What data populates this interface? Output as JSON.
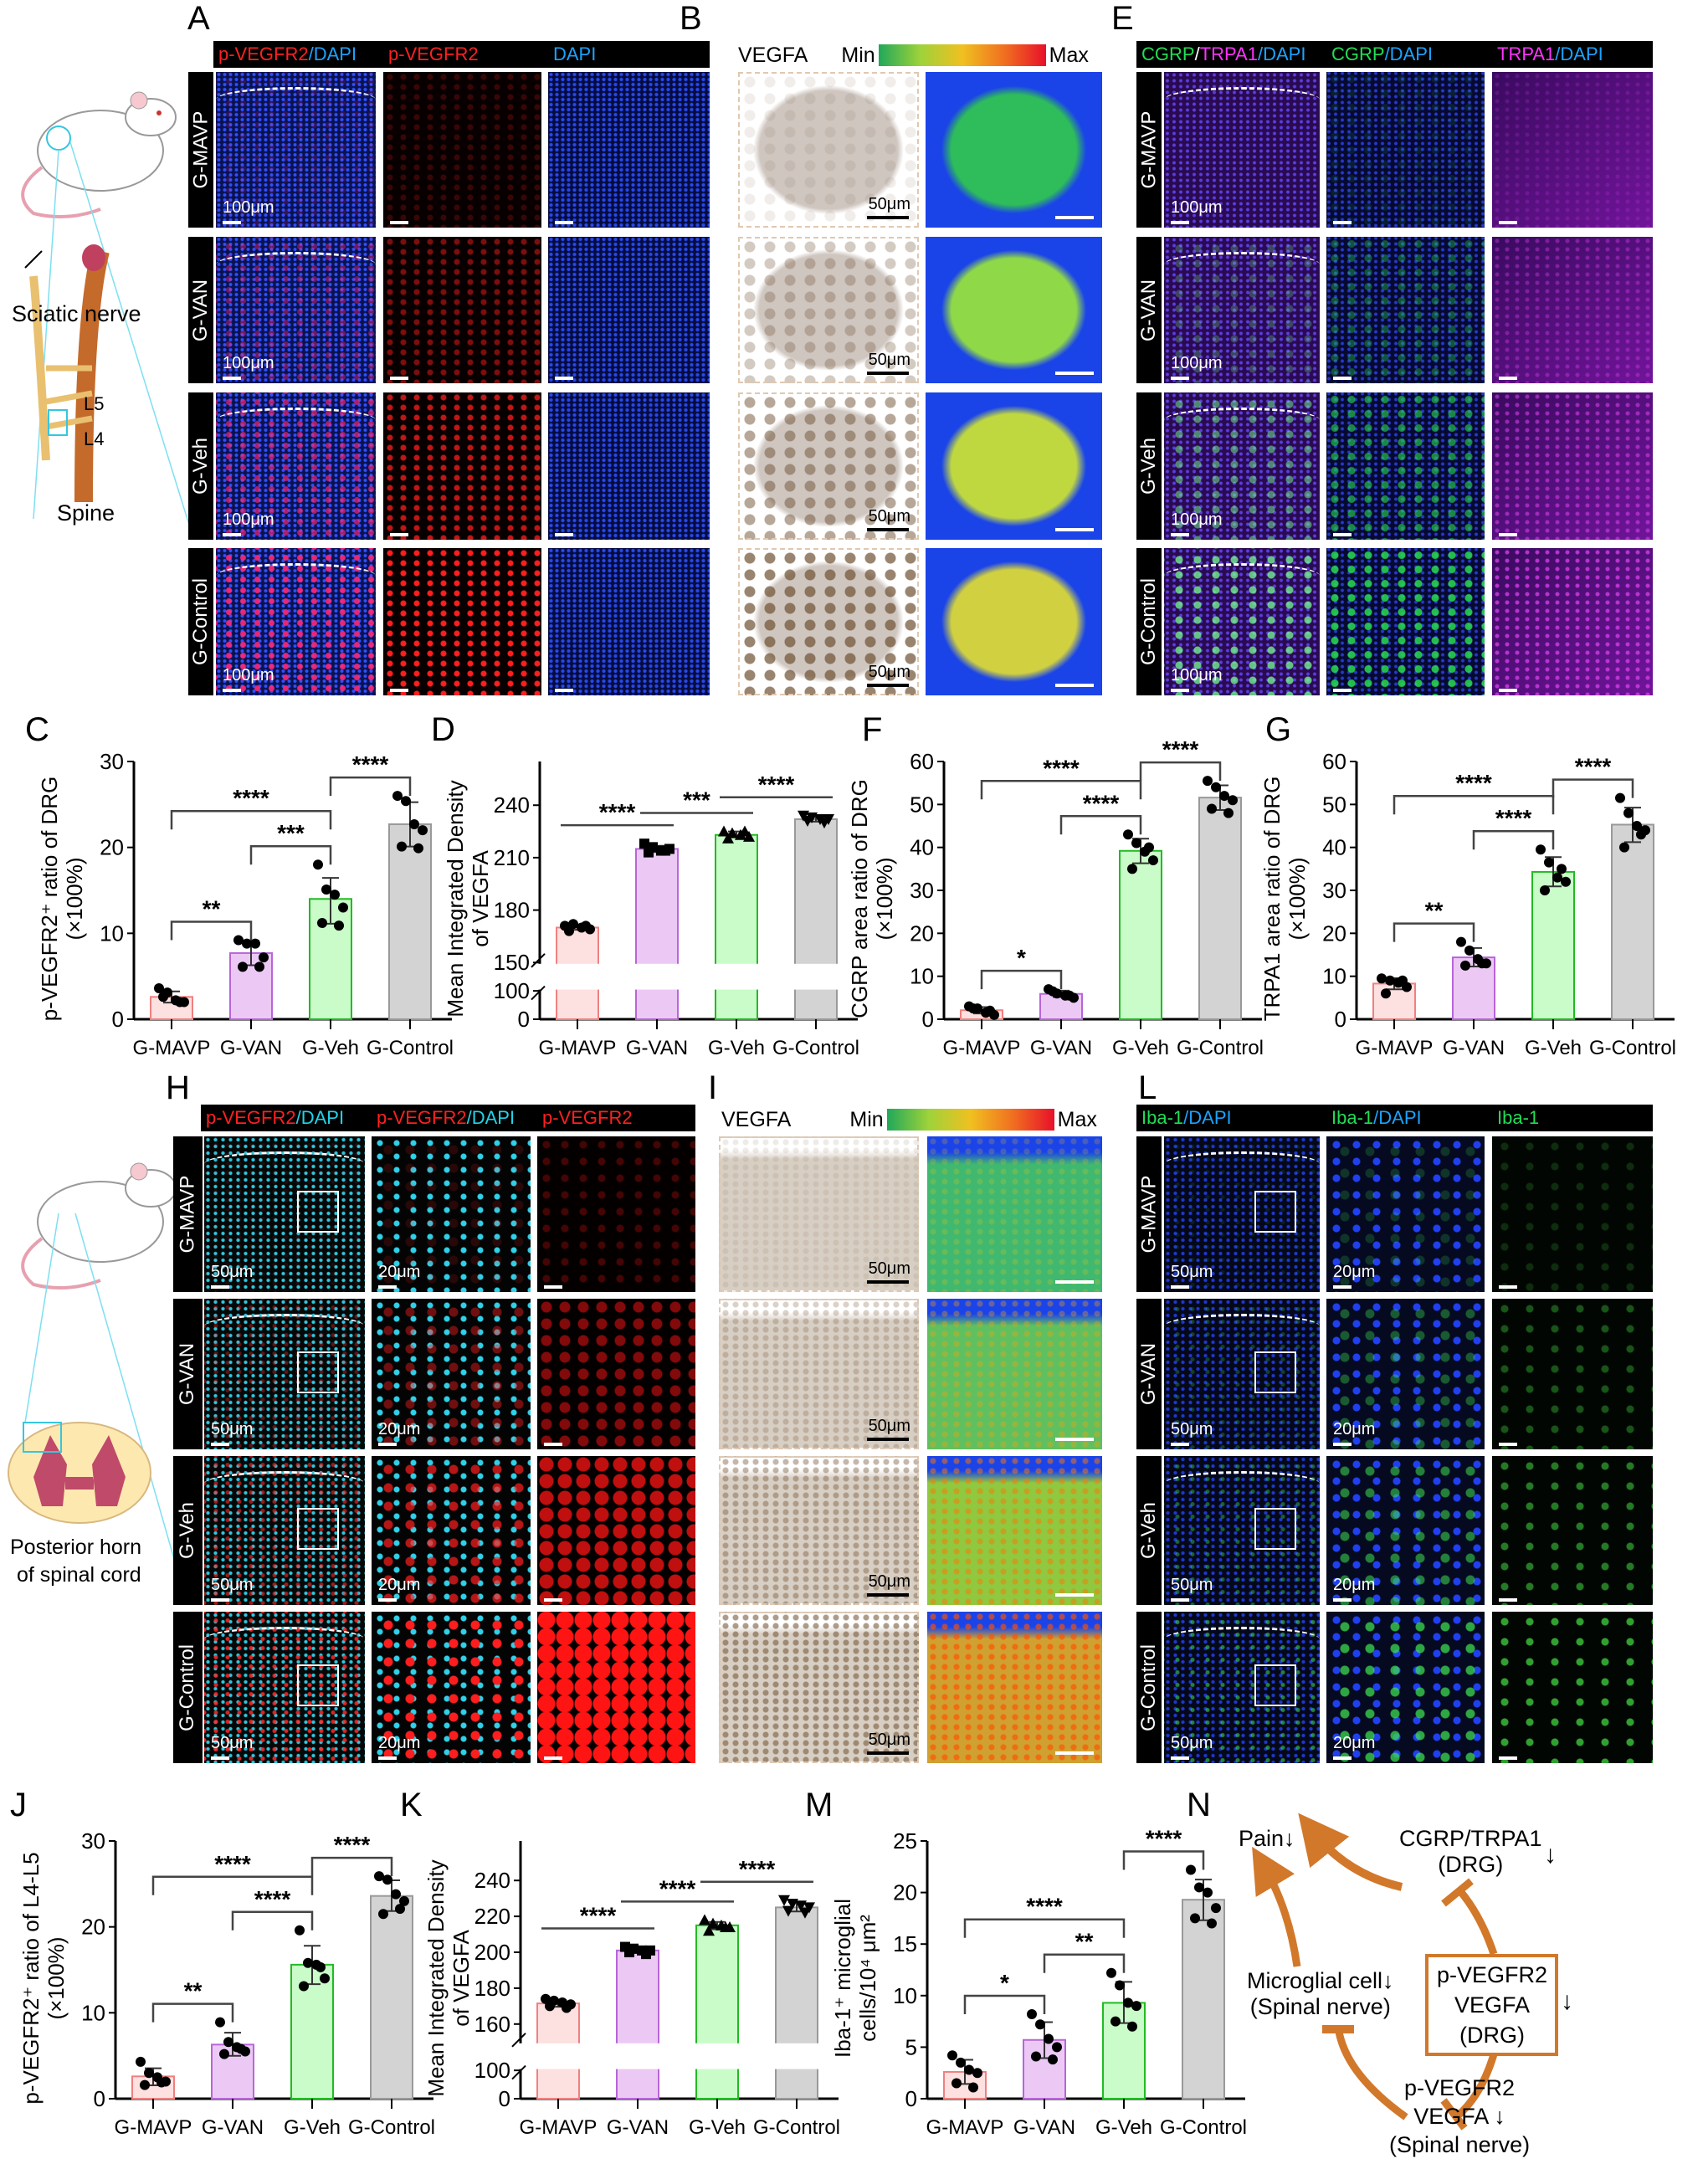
{
  "panel_letters": {
    "A": "A",
    "B": "B",
    "C": "C",
    "D": "D",
    "E": "E",
    "F": "F",
    "G": "G",
    "H": "H",
    "I": "I",
    "J": "J",
    "K": "K",
    "L": "L",
    "M": "M",
    "N": "N"
  },
  "groups": [
    "G-MAVP",
    "G-VAN",
    "G-Veh",
    "G-Control"
  ],
  "illustration_top": {
    "sciatic": "Sciatic nerve",
    "l5": "L5",
    "l4": "L4",
    "spine": "Spine"
  },
  "illustration_bottom": {
    "horn_line1": "Posterior horn",
    "horn_line2": "of spinal cord"
  },
  "panel_A": {
    "headers": [
      [
        {
          "t": "p-VEGFR2",
          "c": "#ff2020"
        },
        {
          "t": "/DAPI",
          "c": "#1aa3ff"
        }
      ],
      [
        {
          "t": "p-VEGFR2",
          "c": "#ff2020"
        }
      ],
      [
        {
          "t": "DAPI",
          "c": "#1aa3ff"
        }
      ]
    ],
    "scale": "100μm"
  },
  "panel_B": {
    "title": "VEGFA",
    "min": "Min",
    "max": "Max",
    "scale": "50μm"
  },
  "panel_E": {
    "headers": [
      [
        {
          "t": "CGRP",
          "c": "#22dd55"
        },
        {
          "t": "/",
          "c": "#fff"
        },
        {
          "t": "TRPA1",
          "c": "#ff33ff"
        },
        {
          "t": "/DAPI",
          "c": "#1aa3ff"
        }
      ],
      [
        {
          "t": "CGRP",
          "c": "#22dd55"
        },
        {
          "t": "/DAPI",
          "c": "#1aa3ff"
        }
      ],
      [
        {
          "t": "TRPA1",
          "c": "#ff33ff"
        },
        {
          "t": "/DAPI",
          "c": "#1aa3ff"
        }
      ]
    ],
    "scale": "100μm"
  },
  "panel_H": {
    "headers": [
      [
        {
          "t": "p-VEGFR2",
          "c": "#ff2020"
        },
        {
          "t": "/DAPI",
          "c": "#22d3e8"
        }
      ],
      [
        {
          "t": "p-VEGFR2",
          "c": "#ff2020"
        },
        {
          "t": "/DAPI",
          "c": "#22d3e8"
        }
      ],
      [
        {
          "t": "p-VEGFR2",
          "c": "#ff2020"
        }
      ]
    ],
    "scale_low": "50μm",
    "scale_high": "20μm"
  },
  "panel_I": {
    "title": "VEGFA",
    "min": "Min",
    "max": "Max",
    "scale": "50μm"
  },
  "panel_L": {
    "headers": [
      [
        {
          "t": "Iba-1",
          "c": "#22dd55"
        },
        {
          "t": "/DAPI",
          "c": "#1aa3ff"
        }
      ],
      [
        {
          "t": "Iba-1",
          "c": "#22dd55"
        },
        {
          "t": "/DAPI",
          "c": "#1aa3ff"
        }
      ],
      [
        {
          "t": "Iba-1",
          "c": "#22dd55"
        }
      ]
    ],
    "scale_low": "50μm",
    "scale_high": "20μm"
  },
  "colors": {
    "fills": [
      "#fde0e0",
      "#ecc9f5",
      "#c9fcc9",
      "#d3d3d3"
    ],
    "strokes": [
      "#f08080",
      "#b865d8",
      "#22bb22",
      "#999999"
    ],
    "pathway": "#d2782a"
  },
  "chart_data": [
    {
      "id": "C",
      "type": "bar",
      "ylabel": "p-VEGFR2⁺ ratio of DRG",
      "ylabel2": "(×100%)",
      "ylim": [
        0,
        30
      ],
      "ticks": [
        0,
        10,
        20,
        30
      ],
      "bracket_style": "tick",
      "markers": [
        "circle",
        "circle",
        "circle",
        "circle"
      ],
      "categories": [
        "G-MAVP",
        "G-VAN",
        "G-Veh",
        "G-Control"
      ],
      "values": [
        2.6,
        7.7,
        14.0,
        22.7
      ],
      "points": [
        [
          3.6,
          3.1,
          2.2,
          2.0,
          2.6,
          2.0
        ],
        [
          9.2,
          8.8,
          8.8,
          7.2,
          6.1,
          6.1
        ],
        [
          18.0,
          15.1,
          14.5,
          13.0,
          11.2,
          10.9
        ],
        [
          26.0,
          25.4,
          22.7,
          22.0,
          20.1,
          19.9
        ]
      ],
      "significance": [
        {
          "from": 0,
          "to": 1,
          "label": "**"
        },
        {
          "from": 1,
          "to": 2,
          "label": "***"
        },
        {
          "from": 0,
          "to": 2,
          "label": "****"
        },
        {
          "from": 2,
          "to": 3,
          "label": "****"
        }
      ]
    },
    {
      "id": "D",
      "type": "bar",
      "ylabel": "Mean Integrated Density",
      "ylabel2": "of VEGFA",
      "ylim": [
        0,
        265
      ],
      "axis_break": [
        100,
        150
      ],
      "ticks": [
        0,
        100,
        150,
        180,
        210,
        240
      ],
      "bracket_style": "flat",
      "markers": [
        "circle",
        "square",
        "triangle-up",
        "triangle-down"
      ],
      "categories": [
        "G-MAVP",
        "G-VAN",
        "G-Veh",
        "G-Control"
      ],
      "values": [
        170,
        215,
        223,
        232
      ],
      "points": [
        [
          171,
          172,
          170,
          169,
          168,
          171
        ],
        [
          218,
          216,
          214,
          215,
          213,
          214
        ],
        [
          225,
          224,
          223,
          222,
          221,
          225
        ],
        [
          234,
          233,
          232,
          232,
          231,
          230
        ]
      ],
      "significance": [
        {
          "from": 0,
          "to": 1,
          "label": "****"
        },
        {
          "from": 1,
          "to": 2,
          "label": "***"
        },
        {
          "from": 2,
          "to": 3,
          "label": "****"
        }
      ]
    },
    {
      "id": "F",
      "type": "bar",
      "ylabel": "CGRP area ratio of DRG",
      "ylabel2": "(×100%)",
      "ylim": [
        0,
        60
      ],
      "ticks": [
        0,
        10,
        20,
        30,
        40,
        50,
        60
      ],
      "bracket_style": "tick",
      "markers": [
        "circle",
        "circle",
        "circle",
        "circle"
      ],
      "categories": [
        "G-MAVP",
        "G-VAN",
        "G-Veh",
        "G-Control"
      ],
      "values": [
        2.1,
        5.9,
        39.2,
        51.6
      ],
      "points": [
        [
          3.0,
          2.5,
          1.5,
          1.0,
          2.5,
          2.0
        ],
        [
          7.0,
          6.0,
          5.5,
          5.0,
          6.5,
          5.5
        ],
        [
          43,
          41,
          39,
          37,
          35,
          40
        ],
        [
          55.5,
          54,
          52,
          51,
          49,
          48
        ]
      ],
      "significance": [
        {
          "from": 0,
          "to": 1,
          "label": "*"
        },
        {
          "from": 1,
          "to": 2,
          "label": "****"
        },
        {
          "from": 0,
          "to": 2,
          "label": "****"
        },
        {
          "from": 2,
          "to": 3,
          "label": "****"
        }
      ]
    },
    {
      "id": "G",
      "type": "bar",
      "ylabel": "TRPA1 area ratio of DRG",
      "ylabel2": "(×100%)",
      "ylim": [
        0,
        60
      ],
      "ticks": [
        0,
        10,
        20,
        30,
        40,
        50,
        60
      ],
      "bracket_style": "tick",
      "markers": [
        "circle",
        "circle",
        "circle",
        "circle"
      ],
      "categories": [
        "G-MAVP",
        "G-VAN",
        "G-Veh",
        "G-Control"
      ],
      "values": [
        8.3,
        14.4,
        34.3,
        45.3
      ],
      "points": [
        [
          9.5,
          9.0,
          8.5,
          7.5,
          6.0,
          9.0
        ],
        [
          18,
          16,
          14,
          13,
          12.5,
          13
        ],
        [
          39.5,
          36.5,
          33,
          32,
          30,
          35
        ],
        [
          51.5,
          48,
          45,
          44,
          40,
          43
        ]
      ],
      "significance": [
        {
          "from": 0,
          "to": 1,
          "label": "**"
        },
        {
          "from": 1,
          "to": 2,
          "label": "****"
        },
        {
          "from": 0,
          "to": 2,
          "label": "****"
        },
        {
          "from": 2,
          "to": 3,
          "label": "****"
        }
      ]
    },
    {
      "id": "J",
      "type": "bar",
      "ylabel": "p-VEGFR2⁺ ratio of L4-L5",
      "ylabel2": "(×100%)",
      "ylim": [
        0,
        30
      ],
      "ticks": [
        0,
        10,
        20,
        30
      ],
      "bracket_style": "tick",
      "markers": [
        "circle",
        "circle",
        "circle",
        "circle"
      ],
      "categories": [
        "G-MAVP",
        "G-VAN",
        "G-Veh",
        "G-Control"
      ],
      "values": [
        2.6,
        6.3,
        15.6,
        23.6
      ],
      "points": [
        [
          4.3,
          3.0,
          2.5,
          2.0,
          1.6,
          1.9
        ],
        [
          8.9,
          6.6,
          6.0,
          5.5,
          5.2,
          5.8
        ],
        [
          19.6,
          15.8,
          15.6,
          14.0,
          13.1,
          15.3
        ],
        [
          25.9,
          25.5,
          23.8,
          23.0,
          21.5,
          22.1
        ]
      ],
      "significance": [
        {
          "from": 0,
          "to": 1,
          "label": "**"
        },
        {
          "from": 1,
          "to": 2,
          "label": "****"
        },
        {
          "from": 0,
          "to": 2,
          "label": "****"
        },
        {
          "from": 2,
          "to": 3,
          "label": "****"
        }
      ]
    },
    {
      "id": "K",
      "type": "bar",
      "ylabel": "Mean Integrated Density",
      "ylabel2": "of VEGFA",
      "ylim": [
        0,
        262
      ],
      "axis_break": [
        100,
        150
      ],
      "ticks": [
        0,
        100,
        160,
        180,
        200,
        220,
        240
      ],
      "bracket_style": "flat",
      "markers": [
        "circle",
        "square",
        "triangle-up",
        "triangle-down"
      ],
      "categories": [
        "G-MAVP",
        "G-VAN",
        "G-Veh",
        "G-Control"
      ],
      "values": [
        171.5,
        201,
        215,
        225
      ],
      "points": [
        [
          174,
          173,
          172,
          171,
          170,
          169
        ],
        [
          203,
          202,
          201,
          201,
          200,
          199
        ],
        [
          218,
          216,
          215,
          214,
          212,
          214
        ],
        [
          229,
          227,
          226,
          225,
          223,
          222
        ]
      ],
      "significance": [
        {
          "from": 0,
          "to": 1,
          "label": "****"
        },
        {
          "from": 1,
          "to": 2,
          "label": "****"
        },
        {
          "from": 2,
          "to": 3,
          "label": "****"
        }
      ]
    },
    {
      "id": "M",
      "type": "bar",
      "ylabel": "Iba-1⁺ microglial",
      "ylabel2": "cells/10⁴ μm²",
      "ylim": [
        0,
        25
      ],
      "ticks": [
        0,
        5,
        10,
        15,
        20,
        25
      ],
      "bracket_style": "tick",
      "markers": [
        "circle",
        "circle",
        "circle",
        "circle"
      ],
      "categories": [
        "G-MAVP",
        "G-VAN",
        "G-Veh",
        "G-Control"
      ],
      "values": [
        2.6,
        5.7,
        9.3,
        19.3
      ],
      "points": [
        [
          4.2,
          3.5,
          2.8,
          2.5,
          1.5,
          1.1
        ],
        [
          8.2,
          7.2,
          5.8,
          5.0,
          4.1,
          3.8
        ],
        [
          12.2,
          11.0,
          9.3,
          9.0,
          7.5,
          7.0
        ],
        [
          22.2,
          20.5,
          20.0,
          18.5,
          17.5,
          17.0
        ]
      ],
      "significance": [
        {
          "from": 0,
          "to": 1,
          "label": "*"
        },
        {
          "from": 1,
          "to": 2,
          "label": "**"
        },
        {
          "from": 0,
          "to": 2,
          "label": "****"
        },
        {
          "from": 2,
          "to": 3,
          "label": "****"
        }
      ]
    }
  ],
  "pathway": {
    "pain": "Pain",
    "cgrp_line1": "CGRP/TRPA1",
    "cgrp_line2": "(DRG)",
    "microglia_line1": "Microglial cell",
    "microglia_line2": "(Spinal nerve)",
    "drg_box_line1": "p-VEGFR2",
    "drg_box_line2": "VEGFA",
    "drg_box_line3": "(DRG)",
    "sn_line1": "p-VEGFR2",
    "sn_line2": "VEGFA",
    "sn_line3": "(Spinal nerve)",
    "down_arrow": "↓"
  }
}
